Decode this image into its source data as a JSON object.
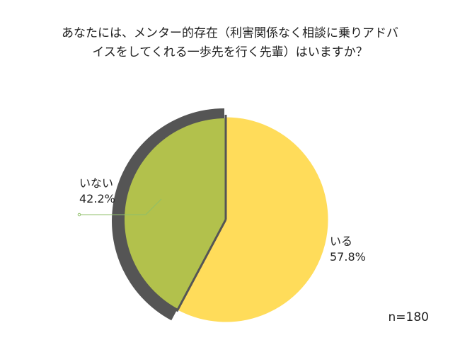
{
  "title_lines": [
    "あなたには、メンター的存在（利害関係なく相談に乗りアドバ",
    "イスをしてくれる一歩先を行く先輩）はいますか？"
  ],
  "sample_size": "n=180",
  "chart_data": {
    "type": "pie",
    "title": "あなたには、メンター的存在（利害関係なく相談に乗りアドバイスをしてくれる一歩先を行く先輩）はいますか？",
    "slices": [
      {
        "label": "いる",
        "value": 57.8,
        "value_label": "57.8%",
        "color": "#FFDC5A"
      },
      {
        "label": "いない",
        "value": 42.2,
        "value_label": "42.2%",
        "color": "#B2C14C",
        "exploded": true
      }
    ],
    "start": "12 o'clock",
    "direction": "clockwise",
    "shadow_color": "#555555",
    "leader_line_color": "#8fbf6a"
  }
}
